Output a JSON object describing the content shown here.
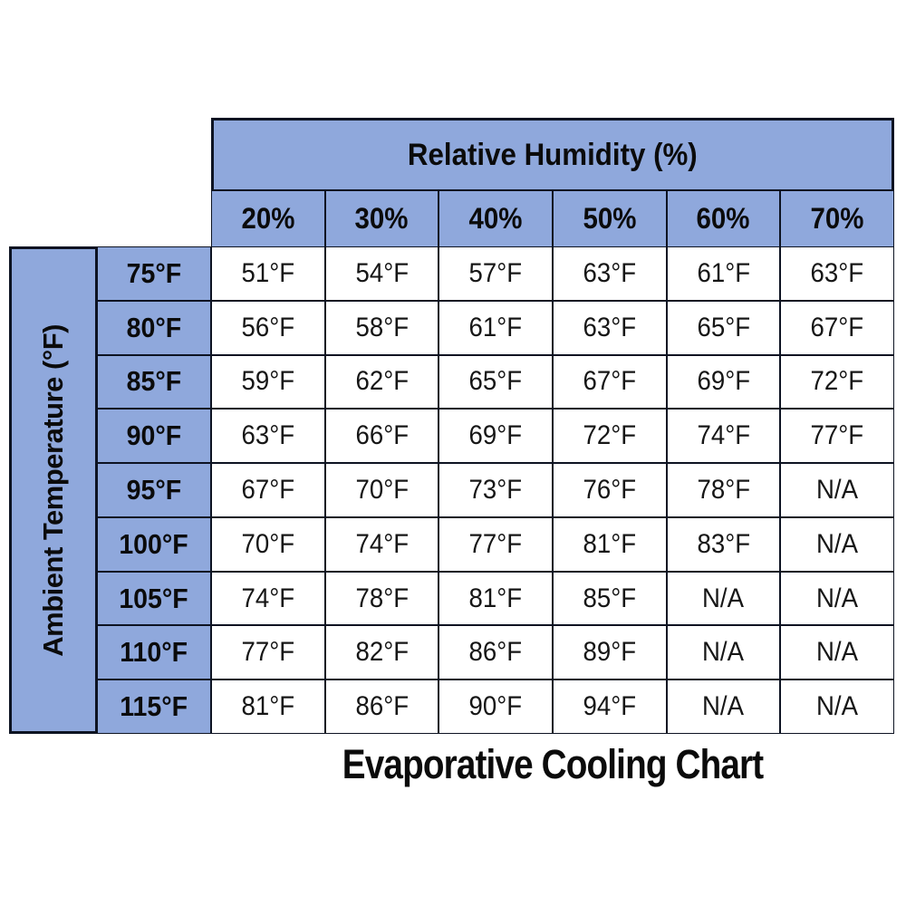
{
  "title": "Evaporative Cooling Chart",
  "colors": {
    "header_blue": "#8FA8DC",
    "border_dark": "#0D1322",
    "cell_white": "#FFFFFF",
    "text_dark": "#0B0B0B"
  },
  "chart_data": {
    "type": "table",
    "title": "Evaporative Cooling Chart",
    "column_group_label": "Relative Humidity (%)",
    "row_group_label": "Ambient Temperature (°F)",
    "columns": [
      "20%",
      "30%",
      "40%",
      "50%",
      "60%",
      "70%"
    ],
    "rows": [
      {
        "label": "75°F",
        "values": [
          "51°F",
          "54°F",
          "57°F",
          "63°F",
          "61°F",
          "63°F"
        ]
      },
      {
        "label": "80°F",
        "values": [
          "56°F",
          "58°F",
          "61°F",
          "63°F",
          "65°F",
          "67°F"
        ]
      },
      {
        "label": "85°F",
        "values": [
          "59°F",
          "62°F",
          "65°F",
          "67°F",
          "69°F",
          "72°F"
        ]
      },
      {
        "label": "90°F",
        "values": [
          "63°F",
          "66°F",
          "69°F",
          "72°F",
          "74°F",
          "77°F"
        ]
      },
      {
        "label": "95°F",
        "values": [
          "67°F",
          "70°F",
          "73°F",
          "76°F",
          "78°F",
          "N/A"
        ]
      },
      {
        "label": "100°F",
        "values": [
          "70°F",
          "74°F",
          "77°F",
          "81°F",
          "83°F",
          "N/A"
        ]
      },
      {
        "label": "105°F",
        "values": [
          "74°F",
          "78°F",
          "81°F",
          "85°F",
          "N/A",
          "N/A"
        ]
      },
      {
        "label": "110°F",
        "values": [
          "77°F",
          "82°F",
          "86°F",
          "89°F",
          "N/A",
          "N/A"
        ]
      },
      {
        "label": "115°F",
        "values": [
          "81°F",
          "86°F",
          "90°F",
          "94°F",
          "N/A",
          "N/A"
        ]
      }
    ]
  }
}
